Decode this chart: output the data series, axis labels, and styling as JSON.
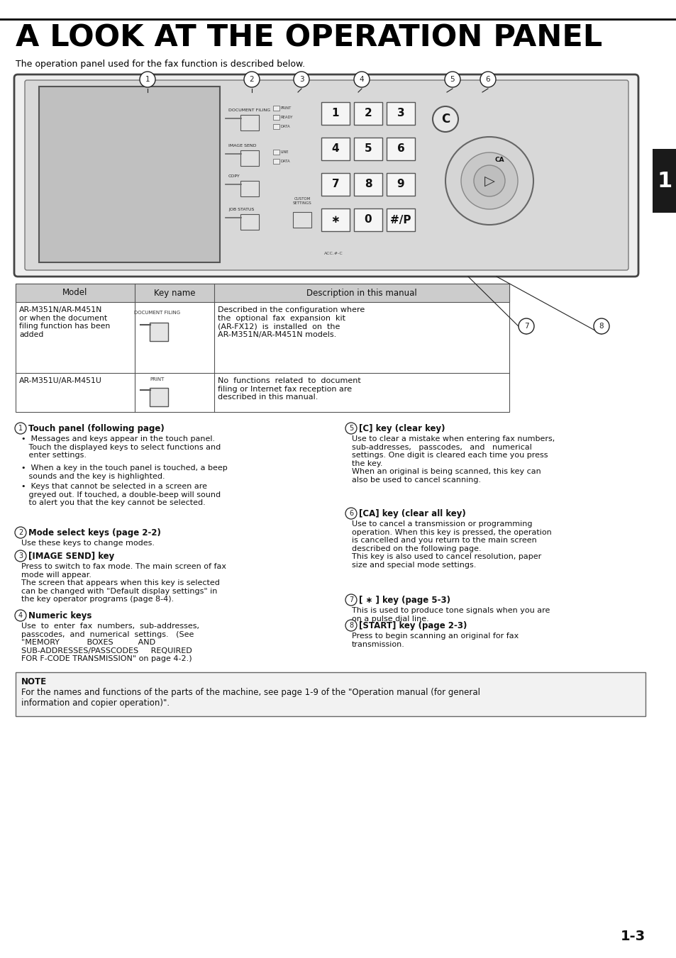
{
  "title": "A LOOK AT THE OPERATION PANEL",
  "subtitle": "The operation panel used for the fax function is described below.",
  "page_tab": "1",
  "page_number": "1-3",
  "section1_header": "Touch panel (following page)",
  "section1_b1": "Messages and keys appear in the touch panel. Touch the displayed keys to select functions and enter settings.",
  "section1_b2": "When a key in the touch panel is touched, a beep sounds and the key is highlighted.",
  "section1_b3": "Keys that cannot be selected in a screen are greyed out. If touched, a double-beep will sound to alert you that the key cannot be selected.",
  "section2_header": "Mode select keys (page 2-2)",
  "section2_text": "Use these keys to change modes.",
  "section3_header": "[IMAGE SEND] key",
  "section3_text1": "Press to switch to fax mode. The main screen of fax mode will appear.",
  "section3_text2": "The screen that appears when this key is selected can be changed with \"Default display settings\" in the key operator programs (page 8-4).",
  "section4_header": "Numeric keys",
  "section4_text": "Use to enter fax numbers, sub-addresses, passcodes, and numerical settings. (See \"MEMORY         BOXES       AND SUB-ADDRESSES/PASSCODES    REQUIRED FOR F-CODE TRANSMISSION\" on page 4-2.)",
  "section5_header": "[C] key (clear key)",
  "section5_text1": "Use to clear a mistake when entering fax numbers, sub-addresses,   passcodes,   and   numerical settings. One digit is cleared each time you press the key.",
  "section5_text2": "When an original is being scanned, this key can also be used to cancel scanning.",
  "section6_header": "[CA] key (clear all key)",
  "section6_text1": "Use to cancel a transmission or programming operation. When this key is pressed, the operation is cancelled and you return to the main screen described on the following page.",
  "section6_text2": "This key is also used to cancel resolution, paper size and special mode settings.",
  "section7_header": "[ ∗ ] key (page 5-3)",
  "section7_text": "This is used to produce tone signals when you are on a pulse dial line.",
  "section8_header": "[START] key (page 2-3)",
  "section8_text": "Press to begin scanning an original for fax transmission.",
  "note_label": "NOTE",
  "note_text": "For the names and functions of the parts of the machine, see page 1-9 of the \"Operation manual (for general information and copier operation)\".",
  "table_headers": [
    "Model",
    "Key name",
    "Description in this manual"
  ],
  "table_row1_model": "AR-M351N/AR-M451N\nor when the document\nfiling function has been\nadded",
  "table_row1_keyname": "DOCUMENT FILING",
  "table_row1_desc": "Described in the configuration where the optional fax expansion kit (AR-FX12) is installed on the AR-M351N/AR-M451N models.",
  "table_row2_model": "AR-M351U/AR-M451U",
  "table_row2_keyname": "PRINT",
  "table_row2_desc": "No functions related to document filing or Internet fax reception are described in this manual.",
  "bg_color": "#ffffff",
  "text_color": "#000000",
  "tab_bg": "#1a1a1a",
  "tab_text": "#ffffff"
}
